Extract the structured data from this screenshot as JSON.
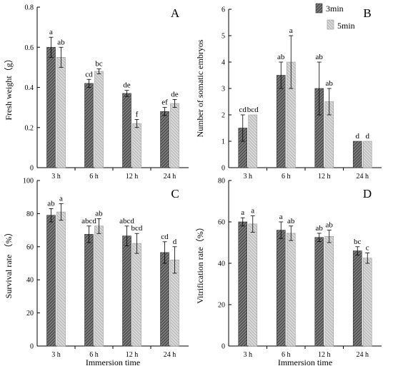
{
  "legend": {
    "series": [
      {
        "name": "3min",
        "fill": "pat-dark"
      },
      {
        "name": "5min",
        "fill": "pat-light"
      }
    ]
  },
  "chart_data": [
    {
      "id": "A",
      "letter": "A",
      "type": "bar",
      "categories": [
        "3 h",
        "6 h",
        "12 h",
        "24 h"
      ],
      "ylabel": "Fresh weight（g）",
      "xlabel": "",
      "ylim": [
        0,
        0.8
      ],
      "yticks": [
        "0",
        "0.2",
        "0.4",
        "0.6",
        "0.8"
      ],
      "ytick_values": [
        0,
        0.2,
        0.4,
        0.6,
        0.8
      ],
      "series": [
        {
          "name": "3min",
          "values": [
            0.6,
            0.42,
            0.37,
            0.28
          ],
          "errors": [
            0.05,
            0.02,
            0.015,
            0.02
          ],
          "labels": [
            "a",
            "cd",
            "de",
            "ef"
          ]
        },
        {
          "name": "5min",
          "values": [
            0.55,
            0.48,
            0.22,
            0.32
          ],
          "errors": [
            0.05,
            0.012,
            0.02,
            0.02
          ],
          "labels": [
            "ab",
            "bc",
            "f",
            "de"
          ]
        }
      ]
    },
    {
      "id": "B",
      "letter": "B",
      "type": "bar",
      "categories": [
        "3 h",
        "6 h",
        "12 h",
        "24 h"
      ],
      "ylabel": "Number of somatic embryos",
      "xlabel": "",
      "ylim": [
        0,
        6
      ],
      "yticks": [
        "0",
        "1",
        "2",
        "3",
        "4",
        "5",
        "6"
      ],
      "ytick_values": [
        0,
        1,
        2,
        3,
        4,
        5,
        6
      ],
      "series": [
        {
          "name": "3min",
          "values": [
            1.5,
            3.5,
            3.0,
            1.0
          ],
          "errors": [
            0.5,
            0.5,
            1.0,
            0
          ],
          "labels": [
            "cd",
            "ab",
            "ab",
            "d"
          ]
        },
        {
          "name": "5min",
          "values": [
            2.0,
            4.0,
            2.5,
            1.0
          ],
          "errors": [
            0,
            1.0,
            0.5,
            0
          ],
          "labels": [
            "bcd",
            "a",
            "ab",
            "d"
          ]
        }
      ]
    },
    {
      "id": "C",
      "letter": "C",
      "type": "bar",
      "categories": [
        "3 h",
        "6 h",
        "12 h",
        "24 h"
      ],
      "ylabel": "Survival rate （%）",
      "xlabel": "Immersion time",
      "ylim": [
        0,
        100
      ],
      "yticks": [
        "0",
        "20",
        "40",
        "60",
        "80",
        "100"
      ],
      "ytick_values": [
        0,
        20,
        40,
        60,
        80,
        100
      ],
      "series": [
        {
          "name": "3min",
          "values": [
            79,
            67.5,
            66.5,
            56.5
          ],
          "errors": [
            4,
            5,
            6,
            6.5
          ],
          "labels": [
            "ab",
            "abcd",
            "abcd",
            "cd"
          ]
        },
        {
          "name": "5min",
          "values": [
            81,
            72.5,
            62,
            52
          ],
          "errors": [
            5,
            4.5,
            6,
            8
          ],
          "labels": [
            "a",
            "ab",
            "bcd",
            "d"
          ]
        }
      ]
    },
    {
      "id": "D",
      "letter": "D",
      "type": "bar",
      "categories": [
        "3 h",
        "6 h",
        "12 h",
        "24 h"
      ],
      "ylabel": "Vitrification rate（%）",
      "xlabel": "Immersion time",
      "ylim": [
        0,
        80
      ],
      "yticks": [
        "0",
        "20",
        "40",
        "60",
        "80"
      ],
      "ytick_values": [
        0,
        20,
        40,
        60,
        80
      ],
      "series": [
        {
          "name": "3min",
          "values": [
            60,
            56,
            52.5,
            46
          ],
          "errors": [
            2,
            4,
            2,
            2
          ],
          "labels": [
            "a",
            "a",
            "ab",
            "bc"
          ]
        },
        {
          "name": "5min",
          "values": [
            59,
            54.5,
            53,
            42.5
          ],
          "errors": [
            4,
            3.5,
            3,
            2.5
          ],
          "labels": [
            "a",
            "ab",
            "ab",
            "c"
          ]
        }
      ]
    }
  ]
}
